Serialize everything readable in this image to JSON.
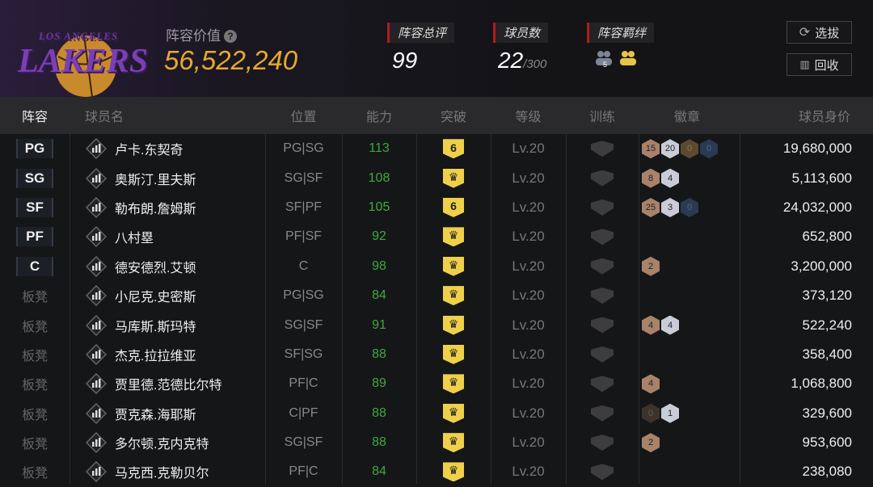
{
  "header": {
    "team_logo_text": "LOS ANGELES LAKERS",
    "value_label": "阵容价值",
    "help_icon": "?",
    "value": "56,522,240",
    "stats": [
      {
        "label": "阵容总评",
        "value": "99"
      },
      {
        "label": "球员数",
        "value": "22",
        "max": "/300"
      },
      {
        "label": "阵容羁绊",
        "icons": [
          "bond-5-icon",
          "bond-gold-icon"
        ]
      }
    ],
    "buttons": {
      "select": "选拔",
      "recycle": "回收"
    }
  },
  "columns": [
    "阵容",
    "球员名",
    "位置",
    "能力",
    "突破",
    "等级",
    "训练",
    "徽章",
    "球员身价"
  ],
  "colors": {
    "accent": "#e6a92e",
    "ability": "#3fa83f",
    "breakthrough": "#efd04a",
    "bar": "#b01c1c"
  },
  "players": [
    {
      "slot": "PG",
      "name": "卢卡.东契奇",
      "pos": "PG|SG",
      "ability": "113",
      "break": "6",
      "level": "Lv.20",
      "badges": [
        [
          "15",
          "b0"
        ],
        [
          "20",
          "b1"
        ],
        [
          "0",
          "b2"
        ],
        [
          "0",
          "b3"
        ]
      ],
      "value": "19,680,000"
    },
    {
      "slot": "SG",
      "name": "奥斯汀.里夫斯",
      "pos": "SG|SF",
      "ability": "108",
      "break": "crown",
      "level": "Lv.20",
      "badges": [
        [
          "8",
          "b0"
        ],
        [
          "4",
          "b1"
        ]
      ],
      "value": "5,113,600"
    },
    {
      "slot": "SF",
      "name": "勒布朗.詹姆斯",
      "pos": "SF|PF",
      "ability": "105",
      "break": "6",
      "level": "Lv.20",
      "badges": [
        [
          "25",
          "b0"
        ],
        [
          "3",
          "b1"
        ],
        [
          "0",
          "b3"
        ]
      ],
      "value": "24,032,000"
    },
    {
      "slot": "PF",
      "name": "八村塁",
      "pos": "PF|SF",
      "ability": "92",
      "break": "crown",
      "level": "Lv.20",
      "badges": [],
      "value": "652,800"
    },
    {
      "slot": "C",
      "name": "德安德烈.艾顿",
      "pos": "C",
      "ability": "98",
      "break": "crown",
      "level": "Lv.20",
      "badges": [
        [
          "2",
          "b0"
        ]
      ],
      "value": "3,200,000"
    },
    {
      "slot": "板凳",
      "name": "小尼克.史密斯",
      "pos": "PG|SG",
      "ability": "84",
      "break": "crown",
      "level": "Lv.20",
      "badges": [],
      "value": "373,120"
    },
    {
      "slot": "板凳",
      "name": "马库斯.斯玛特",
      "pos": "SG|SF",
      "ability": "91",
      "break": "crown",
      "level": "Lv.20",
      "badges": [
        [
          "4",
          "b0"
        ],
        [
          "4",
          "b1"
        ]
      ],
      "value": "522,240"
    },
    {
      "slot": "板凳",
      "name": "杰克.拉拉维亚",
      "pos": "SF|SG",
      "ability": "88",
      "break": "crown",
      "level": "Lv.20",
      "badges": [],
      "value": "358,400"
    },
    {
      "slot": "板凳",
      "name": "贾里德.范德比尔特",
      "pos": "PF|C",
      "ability": "89",
      "break": "crown",
      "level": "Lv.20",
      "badges": [
        [
          "4",
          "b0"
        ]
      ],
      "value": "1,068,800"
    },
    {
      "slot": "板凳",
      "name": "贾克森.海耶斯",
      "pos": "C|PF",
      "ability": "88",
      "break": "crown",
      "level": "Lv.20",
      "badges": [
        [
          "0",
          "bz"
        ],
        [
          "1",
          "b1"
        ]
      ],
      "value": "329,600"
    },
    {
      "slot": "板凳",
      "name": "多尔顿.克内克特",
      "pos": "SG|SF",
      "ability": "88",
      "break": "crown",
      "level": "Lv.20",
      "badges": [
        [
          "2",
          "b0"
        ]
      ],
      "value": "953,600"
    },
    {
      "slot": "板凳",
      "name": "马克西.克勒贝尔",
      "pos": "PF|C",
      "ability": "84",
      "break": "crown",
      "level": "Lv.20",
      "badges": [],
      "value": "238,080"
    }
  ]
}
